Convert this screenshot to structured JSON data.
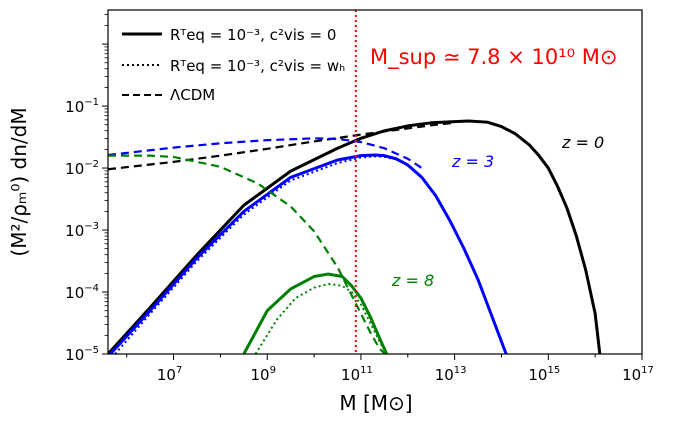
{
  "chart_data": {
    "type": "line",
    "title": "",
    "xlabel": "M [M⊙]",
    "ylabel": "(M²/ρₘ⁰) dn/dM",
    "x_scale": "log",
    "y_scale": "log",
    "xlim_log10": [
      5.6,
      17
    ],
    "ylim_log10": [
      -5,
      0.55
    ],
    "x_ticks": [
      {
        "label": "10",
        "exp": "7",
        "log10": 7
      },
      {
        "label": "10",
        "exp": "9",
        "log10": 9
      },
      {
        "label": "10",
        "exp": "11",
        "log10": 11
      },
      {
        "label": "10",
        "exp": "13",
        "log10": 13
      },
      {
        "label": "10",
        "exp": "15",
        "log10": 15
      },
      {
        "label": "10",
        "exp": "17",
        "log10": 17
      }
    ],
    "y_ticks": [
      {
        "label": "10",
        "exp": "−5",
        "log10": -5
      },
      {
        "label": "10",
        "exp": "−4",
        "log10": -4
      },
      {
        "label": "10",
        "exp": "−3",
        "log10": -3
      },
      {
        "label": "10",
        "exp": "−2",
        "log10": -2
      },
      {
        "label": "10",
        "exp": "−1",
        "log10": -1
      }
    ],
    "legend": [
      {
        "text": "Rᵀeq = 10⁻³, c²vis = 0",
        "style": "solid"
      },
      {
        "text": "Rᵀeq = 10⁻³, c²vis = wₕ",
        "style": "dotted"
      },
      {
        "text": "ΛCDM",
        "style": "dashed"
      }
    ],
    "annotation": {
      "text": "M_sup ≃ 7.8 × 10¹⁰ M⊙",
      "x_log10": 10.89,
      "color": "#ff0000"
    },
    "curve_labels": [
      {
        "text": "z = 0",
        "color": "#000000"
      },
      {
        "text": "z = 3",
        "color": "#0000ff"
      },
      {
        "text": "z = 8",
        "color": "#008000"
      }
    ],
    "series": [
      {
        "name": "z=0 solid",
        "color": "#000000",
        "style": "solid",
        "x_log10": [
          5.6,
          6.5,
          7.5,
          8.5,
          9.5,
          10.5,
          11.0,
          11.5,
          12.0,
          12.5,
          13.0,
          13.3,
          13.7,
          14.0,
          14.3,
          14.6,
          14.8,
          15.0,
          15.2,
          15.4,
          15.6,
          15.8,
          16.0,
          16.1
        ],
        "y_log10": [
          -5.0,
          -4.25,
          -3.4,
          -2.6,
          -2.05,
          -1.68,
          -1.52,
          -1.4,
          -1.32,
          -1.27,
          -1.25,
          -1.24,
          -1.26,
          -1.33,
          -1.45,
          -1.63,
          -1.8,
          -2.0,
          -2.3,
          -2.65,
          -3.1,
          -3.65,
          -4.35,
          -5.0
        ]
      },
      {
        "name": "z=0 dashed",
        "color": "#000000",
        "style": "dashed",
        "x_log10": [
          5.6,
          7.0,
          8.0,
          9.0,
          10.0,
          11.0,
          12.0,
          12.5,
          13.0
        ],
        "y_log10": [
          -2.02,
          -1.9,
          -1.8,
          -1.69,
          -1.57,
          -1.46,
          -1.36,
          -1.31,
          -1.27
        ]
      },
      {
        "name": "z=3 solid",
        "color": "#0000ff",
        "style": "solid",
        "x_log10": [
          5.65,
          6.5,
          7.5,
          8.5,
          9.5,
          10.5,
          11.0,
          11.3,
          11.5,
          11.75,
          12.0,
          12.3,
          12.6,
          12.9,
          13.2,
          13.5,
          13.8,
          14.0,
          14.1
        ],
        "y_log10": [
          -5.0,
          -4.3,
          -3.45,
          -2.7,
          -2.15,
          -1.87,
          -1.8,
          -1.79,
          -1.8,
          -1.85,
          -1.95,
          -2.15,
          -2.45,
          -2.85,
          -3.3,
          -3.8,
          -4.4,
          -4.8,
          -5.0
        ]
      },
      {
        "name": "z=3 dotted",
        "color": "#0000ff",
        "style": "dotted",
        "x_log10": [
          5.75,
          6.5,
          7.5,
          8.5,
          9.5,
          10.5,
          11.0,
          11.3,
          11.5,
          11.75,
          12.0
        ],
        "y_log10": [
          -5.0,
          -4.35,
          -3.5,
          -2.75,
          -2.2,
          -1.92,
          -1.83,
          -1.81,
          -1.82,
          -1.86,
          -1.95
        ]
      },
      {
        "name": "z=3 dashed",
        "color": "#0000ff",
        "style": "dashed",
        "x_log10": [
          5.6,
          7.0,
          8.0,
          9.0,
          9.7,
          10.0,
          10.5,
          11.0,
          11.5,
          12.0,
          12.3
        ],
        "y_log10": [
          -1.79,
          -1.67,
          -1.6,
          -1.55,
          -1.53,
          -1.52,
          -1.53,
          -1.58,
          -1.68,
          -1.85,
          -2.0
        ]
      },
      {
        "name": "z=8 solid",
        "color": "#008000",
        "style": "solid",
        "x_log10": [
          8.5,
          9.0,
          9.5,
          10.0,
          10.3,
          10.6,
          10.8,
          11.0,
          11.2,
          11.4,
          11.55
        ],
        "y_log10": [
          -5.0,
          -4.3,
          -3.95,
          -3.75,
          -3.71,
          -3.75,
          -3.9,
          -4.1,
          -4.4,
          -4.75,
          -5.0
        ]
      },
      {
        "name": "z=8 dotted",
        "color": "#008000",
        "style": "dotted",
        "x_log10": [
          8.75,
          9.2,
          9.6,
          10.0,
          10.3,
          10.6,
          10.8,
          11.0,
          11.2,
          11.4,
          11.55
        ],
        "y_log10": [
          -5.0,
          -4.45,
          -4.1,
          -3.93,
          -3.87,
          -3.9,
          -4.0,
          -4.2,
          -4.5,
          -4.8,
          -5.0
        ]
      },
      {
        "name": "z=8 dashed",
        "color": "#008000",
        "style": "dashed",
        "x_log10": [
          5.6,
          6.5,
          7.0,
          8.0,
          8.8,
          9.5,
          10.0,
          10.5,
          10.8,
          11.0,
          11.2,
          11.4,
          11.6
        ],
        "y_log10": [
          -1.8,
          -1.8,
          -1.82,
          -1.98,
          -2.25,
          -2.62,
          -3.02,
          -3.6,
          -4.05,
          -4.35,
          -4.65,
          -4.92,
          -5.05
        ]
      }
    ]
  }
}
